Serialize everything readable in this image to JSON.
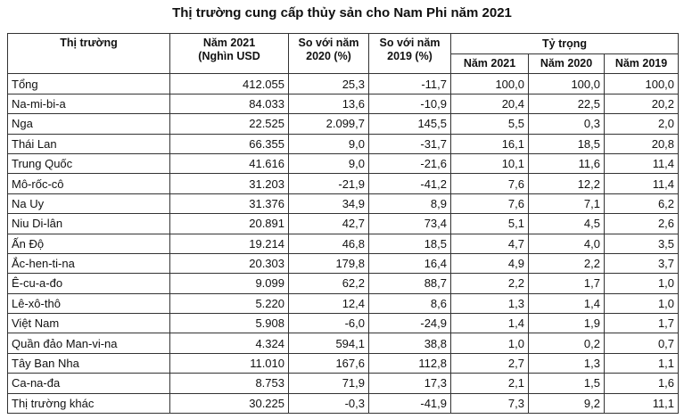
{
  "title": "Thị trường cung cấp thủy sản cho Nam Phi năm 2021",
  "header": {
    "market": "Thị trường",
    "value_2021": "Năm 2021\n(Nghìn USD",
    "vs_2020": "So với năm\n2020 (%)",
    "vs_2019": "So với năm\n2019 (%)",
    "share": "Tỷ trọng",
    "share_columns": [
      "Năm 2021",
      "Năm 2020",
      "Năm 2019"
    ]
  },
  "table": {
    "rows": [
      [
        "Tổng",
        "412.055",
        "25,3",
        "-11,7",
        "100,0",
        "100,0",
        "100,0"
      ],
      [
        "Na-mi-bi-a",
        "84.033",
        "13,6",
        "-10,9",
        "20,4",
        "22,5",
        "20,2"
      ],
      [
        "Nga",
        "22.525",
        "2.099,7",
        "145,5",
        "5,5",
        "0,3",
        "2,0"
      ],
      [
        "Thái Lan",
        "66.355",
        "9,0",
        "-31,7",
        "16,1",
        "18,5",
        "20,8"
      ],
      [
        "Trung Quốc",
        "41.616",
        "9,0",
        "-21,6",
        "10,1",
        "11,6",
        "11,4"
      ],
      [
        "Mô-rốc-cô",
        "31.203",
        "-21,9",
        "-41,2",
        "7,6",
        "12,2",
        "11,4"
      ],
      [
        "Na Uy",
        "31.376",
        "34,9",
        "8,9",
        "7,6",
        "7,1",
        "6,2"
      ],
      [
        "Niu Di-lân",
        "20.891",
        "42,7",
        "73,4",
        "5,1",
        "4,5",
        "2,6"
      ],
      [
        "Ấn Độ",
        "19.214",
        "46,8",
        "18,5",
        "4,7",
        "4,0",
        "3,5"
      ],
      [
        "Ắc-hen-ti-na",
        "20.303",
        "179,8",
        "16,4",
        "4,9",
        "2,2",
        "3,7"
      ],
      [
        "Ê-cu-a-đo",
        "9.099",
        "62,2",
        "88,7",
        "2,2",
        "1,7",
        "1,0"
      ],
      [
        "Lê-xô-thô",
        "5.220",
        "12,4",
        "8,6",
        "1,3",
        "1,4",
        "1,0"
      ],
      [
        "Việt Nam",
        "5.908",
        "-6,0",
        "-24,9",
        "1,4",
        "1,9",
        "1,7"
      ],
      [
        "Quần đảo Man-vi-na",
        "4.324",
        "594,1",
        "38,8",
        "1,0",
        "0,2",
        "0,7"
      ],
      [
        "Tây Ban Nha",
        "11.010",
        "167,6",
        "112,8",
        "2,7",
        "1,3",
        "1,1"
      ],
      [
        "Ca-na-đa",
        "8.753",
        "71,9",
        "17,3",
        "2,1",
        "1,5",
        "1,6"
      ],
      [
        "Thị trường khác",
        "30.225",
        "-0,3",
        "-41,9",
        "7,3",
        "9,2",
        "11,1"
      ]
    ]
  }
}
